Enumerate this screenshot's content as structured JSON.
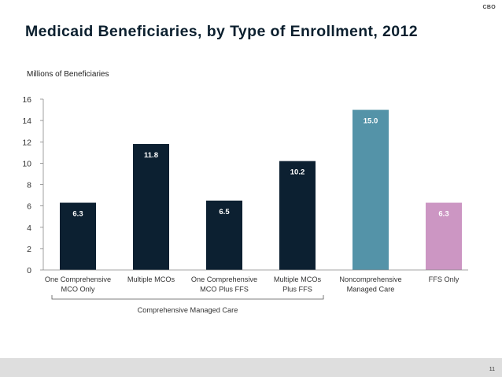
{
  "header": {
    "org_label": "CBO"
  },
  "footer": {
    "page_number": "11"
  },
  "chart_data": {
    "type": "bar",
    "title": "Medicaid Beneficiaries, by Type of Enrollment, 2012",
    "ylabel": "Millions of Beneficiaries",
    "xlabel": "",
    "ylim": [
      0,
      16
    ],
    "yticks": [
      0,
      2,
      4,
      6,
      8,
      10,
      12,
      14,
      16
    ],
    "categories": [
      [
        "One Comprehensive",
        "MCO Only"
      ],
      [
        "Multiple MCOs"
      ],
      [
        "One Comprehensive",
        "MCO Plus FFS"
      ],
      [
        "Multiple MCOs",
        "Plus FFS"
      ],
      [
        "Noncomprehensive",
        "Managed Care"
      ],
      [
        "FFS Only"
      ]
    ],
    "values": [
      6.3,
      11.8,
      6.5,
      10.2,
      15.0,
      6.3
    ],
    "value_labels": [
      "6.3",
      "11.8",
      "6.5",
      "10.2",
      "15.0",
      "6.3"
    ],
    "bar_colors": [
      "#0c2031",
      "#0c2031",
      "#0c2031",
      "#0c2031",
      "#5493a8",
      "#cc96c3"
    ],
    "group_bracket": {
      "label": "Comprehensive Managed Care",
      "from_index": 0,
      "to_index": 3
    },
    "grid": false,
    "legend": "none"
  }
}
